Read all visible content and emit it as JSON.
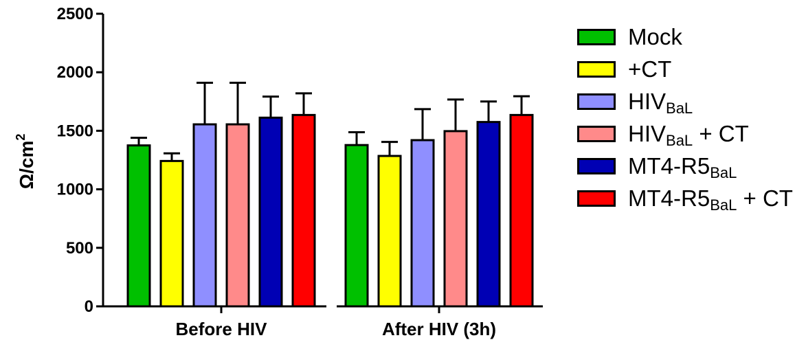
{
  "chart_data": {
    "type": "bar",
    "title": "",
    "xlabel": "",
    "ylabel": "Ω/cm",
    "ylabel_superscript": "2",
    "ylim": [
      0,
      2500
    ],
    "yticks": [
      "0",
      "500",
      "1000",
      "1500",
      "2000",
      "2500"
    ],
    "grid": false,
    "legend_position": "right",
    "categories": [
      "Before HIV",
      "After HIV (3h)"
    ],
    "series": [
      {
        "name": "Mock",
        "label": "Mock",
        "sub": "",
        "suffix": "",
        "color": "#00c000",
        "values": [
          1375,
          1378
        ],
        "errors": [
          65,
          110
        ]
      },
      {
        "name": "+CT",
        "label": "+CT",
        "sub": "",
        "suffix": "",
        "color": "#ffff00",
        "values": [
          1242,
          1285
        ],
        "errors": [
          65,
          120
        ]
      },
      {
        "name": "HIVBaL",
        "label": "HIV",
        "sub": "BaL",
        "suffix": "",
        "color": "#8f8fff",
        "values": [
          1555,
          1420
        ],
        "errors": [
          355,
          265
        ]
      },
      {
        "name": "HIVBaL + CT",
        "label": "HIV",
        "sub": "BaL",
        "suffix": " + CT",
        "color": "#ff8a8a",
        "values": [
          1555,
          1497
        ],
        "errors": [
          355,
          270
        ]
      },
      {
        "name": "MT4-R5BaL",
        "label": "MT4-R5",
        "sub": "BaL",
        "suffix": "",
        "color": "#0000b4",
        "values": [
          1612,
          1575
        ],
        "errors": [
          180,
          175
        ]
      },
      {
        "name": "MT4-R5BaL + CT",
        "label": "MT4-R5",
        "sub": "BaL",
        "suffix": " + CT",
        "color": "#ff0000",
        "values": [
          1635,
          1635
        ],
        "errors": [
          185,
          160
        ]
      }
    ]
  }
}
